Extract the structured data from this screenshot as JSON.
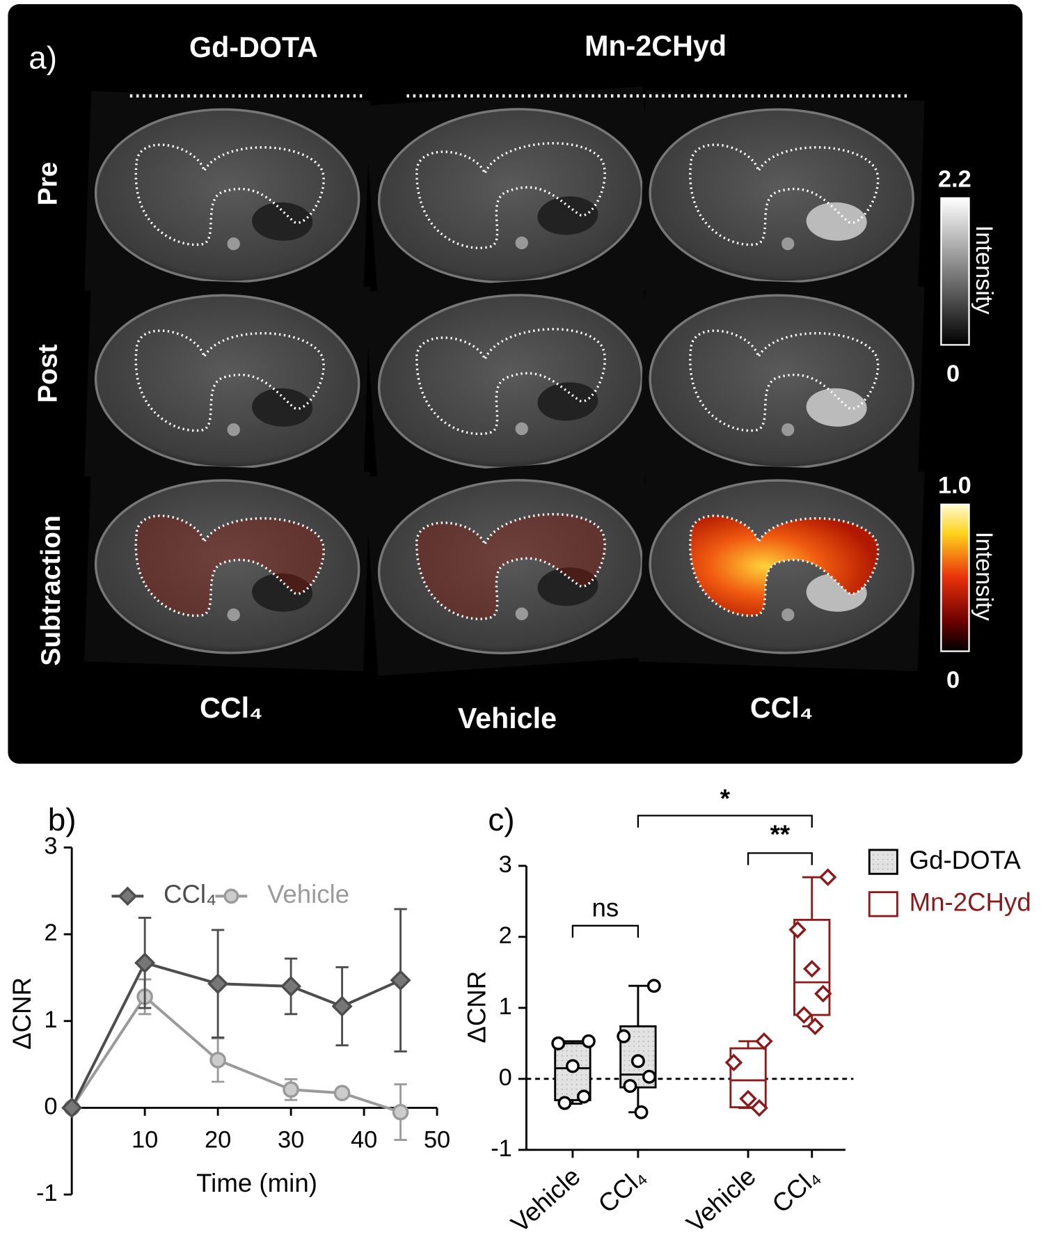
{
  "panel_a": {
    "label": "a)",
    "column_headers": [
      "Gd-DOTA",
      "Mn-2CHyd"
    ],
    "row_labels": [
      "Pre",
      "Post",
      "Subtraction"
    ],
    "column_labels": [
      "CCl₄",
      "Vehicle",
      "CCl₄"
    ],
    "colorbars": [
      {
        "title": "Intensity",
        "max": "2.2",
        "min": "0"
      },
      {
        "title": "Intensity",
        "max": "1.0",
        "min": "0"
      }
    ]
  },
  "chart_data": [
    {
      "type": "line",
      "label": "b)",
      "x_label": "Time (min)",
      "y_label": "ΔCNR",
      "x": [
        0,
        10,
        20,
        30,
        37,
        45
      ],
      "xlim": [
        0,
        50
      ],
      "ylim": [
        -1,
        3
      ],
      "xticks": [
        10,
        20,
        30,
        40,
        50
      ],
      "yticks": [
        -1,
        0,
        1,
        2,
        3
      ],
      "series": [
        {
          "name": "CCl₄",
          "color": "#4d4d4d",
          "marker": "diamond",
          "values": [
            0,
            1.67,
            1.43,
            1.4,
            1.17,
            1.47
          ],
          "errors": [
            0,
            0.52,
            0.62,
            0.32,
            0.45,
            0.82
          ]
        },
        {
          "name": "Vehicle",
          "color": "#9a9a9a",
          "marker": "circle",
          "values": [
            0,
            1.28,
            0.55,
            0.21,
            0.17,
            -0.05
          ],
          "errors": [
            0,
            0.2,
            0.25,
            0.12,
            0.05,
            0.32
          ]
        }
      ]
    },
    {
      "type": "box",
      "label": "c)",
      "y_label": "ΔCNR",
      "categories": [
        "Vehicle",
        "CCl₄",
        "Vehicle",
        "CCl₄"
      ],
      "ylim": [
        -1,
        3
      ],
      "yticks": [
        -1,
        0,
        1,
        2,
        3
      ],
      "zero_line": true,
      "series": [
        {
          "name": "Gd-DOTA",
          "color": "#000000",
          "fill": "#dcdcdc",
          "marker": "circle",
          "boxes": [
            {
              "min": -0.35,
              "q1": -0.3,
              "median": 0.15,
              "q3": 0.5,
              "max": 0.53,
              "points": [
                0.53,
                0.5,
                0.18,
                -0.25,
                -0.34
              ]
            },
            {
              "min": -0.47,
              "q1": -0.12,
              "median": 0.06,
              "q3": 0.74,
              "max": 1.31,
              "points": [
                1.31,
                0.6,
                0.25,
                0.03,
                -0.1,
                -0.47
              ]
            },
            null,
            null
          ]
        },
        {
          "name": "Mn-2CHyd",
          "color": "#8b1a1a",
          "fill": "#ffffff",
          "marker": "diamond",
          "boxes": [
            null,
            null,
            {
              "min": -0.41,
              "q1": -0.4,
              "median": -0.02,
              "q3": 0.43,
              "max": 0.53,
              "points": [
                0.53,
                0.23,
                -0.28,
                -0.41
              ]
            },
            {
              "min": 0.74,
              "q1": 0.9,
              "median": 1.36,
              "q3": 2.24,
              "max": 2.84,
              "points": [
                2.84,
                2.1,
                1.55,
                1.2,
                0.9,
                0.74
              ]
            }
          ]
        }
      ],
      "annotations": [
        "ns",
        "**",
        "*"
      ]
    }
  ]
}
